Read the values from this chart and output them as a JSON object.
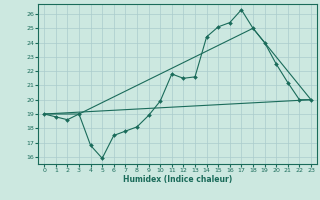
{
  "title": "",
  "xlabel": "Humidex (Indice chaleur)",
  "bg_color": "#cce8e0",
  "grid_color": "#aacccc",
  "line_color": "#1a6b5a",
  "xlim": [
    -0.5,
    23.5
  ],
  "ylim": [
    15.5,
    26.7
  ],
  "yticks": [
    16,
    17,
    18,
    19,
    20,
    21,
    22,
    23,
    24,
    25,
    26
  ],
  "xticks": [
    0,
    1,
    2,
    3,
    4,
    5,
    6,
    7,
    8,
    9,
    10,
    11,
    12,
    13,
    14,
    15,
    16,
    17,
    18,
    19,
    20,
    21,
    22,
    23
  ],
  "line1_x": [
    0,
    1,
    2,
    3,
    4,
    5,
    6,
    7,
    8,
    9,
    10,
    11,
    12,
    13,
    14,
    15,
    16,
    17,
    18,
    19,
    20,
    21,
    22,
    23
  ],
  "line1_y": [
    19.0,
    18.8,
    18.6,
    19.0,
    16.8,
    15.9,
    17.5,
    17.8,
    18.1,
    18.9,
    19.9,
    21.8,
    21.5,
    21.6,
    24.4,
    25.1,
    25.4,
    26.3,
    25.0,
    24.0,
    22.5,
    21.2,
    20.0,
    20.0
  ],
  "line2_x": [
    0,
    3,
    18,
    23
  ],
  "line2_y": [
    19.0,
    19.0,
    25.0,
    20.0
  ],
  "line3_x": [
    0,
    23
  ],
  "line3_y": [
    19.0,
    20.0
  ]
}
